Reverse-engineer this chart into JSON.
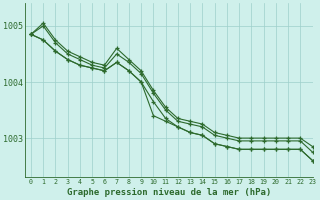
{
  "title": "Graphe pression niveau de la mer (hPa)",
  "bg_color": "#cff0eb",
  "grid_color": "#9ecfca",
  "line_color": "#2d6a2d",
  "xlim": [
    -0.5,
    23
  ],
  "ylim": [
    1002.3,
    1005.4
  ],
  "yticks": [
    1003,
    1004,
    1005
  ],
  "xticks": [
    0,
    1,
    2,
    3,
    4,
    5,
    6,
    7,
    8,
    9,
    10,
    11,
    12,
    13,
    14,
    15,
    16,
    17,
    18,
    19,
    20,
    21,
    22,
    23
  ],
  "series": [
    [
      1004.85,
      1005.05,
      1004.75,
      1004.55,
      1004.45,
      1004.35,
      1004.3,
      1004.6,
      1004.4,
      1004.2,
      1003.85,
      1003.55,
      1003.35,
      1003.3,
      1003.25,
      1003.1,
      1003.05,
      1003.0,
      1003.0,
      1003.0,
      1003.0,
      1003.0,
      1003.0,
      1002.85
    ],
    [
      1004.85,
      1005.0,
      1004.7,
      1004.5,
      1004.4,
      1004.3,
      1004.25,
      1004.5,
      1004.35,
      1004.15,
      1003.8,
      1003.5,
      1003.3,
      1003.25,
      1003.2,
      1003.05,
      1003.0,
      1002.95,
      1002.95,
      1002.95,
      1002.95,
      1002.95,
      1002.95,
      1002.75
    ],
    [
      1004.85,
      1004.75,
      1004.55,
      1004.4,
      1004.3,
      1004.25,
      1004.2,
      1004.35,
      1004.2,
      1004.0,
      1003.65,
      1003.35,
      1003.2,
      1003.1,
      1003.05,
      1002.9,
      1002.85,
      1002.8,
      1002.8,
      1002.8,
      1002.8,
      1002.8,
      1002.8,
      1002.6
    ],
    [
      1004.85,
      1004.75,
      1004.55,
      1004.4,
      1004.3,
      1004.25,
      1004.2,
      1004.35,
      1004.2,
      1004.0,
      1003.4,
      1003.3,
      1003.2,
      1003.1,
      1003.05,
      1002.9,
      1002.85,
      1002.8,
      1002.8,
      1002.8,
      1002.8,
      1002.8,
      1002.8,
      1002.6
    ]
  ]
}
